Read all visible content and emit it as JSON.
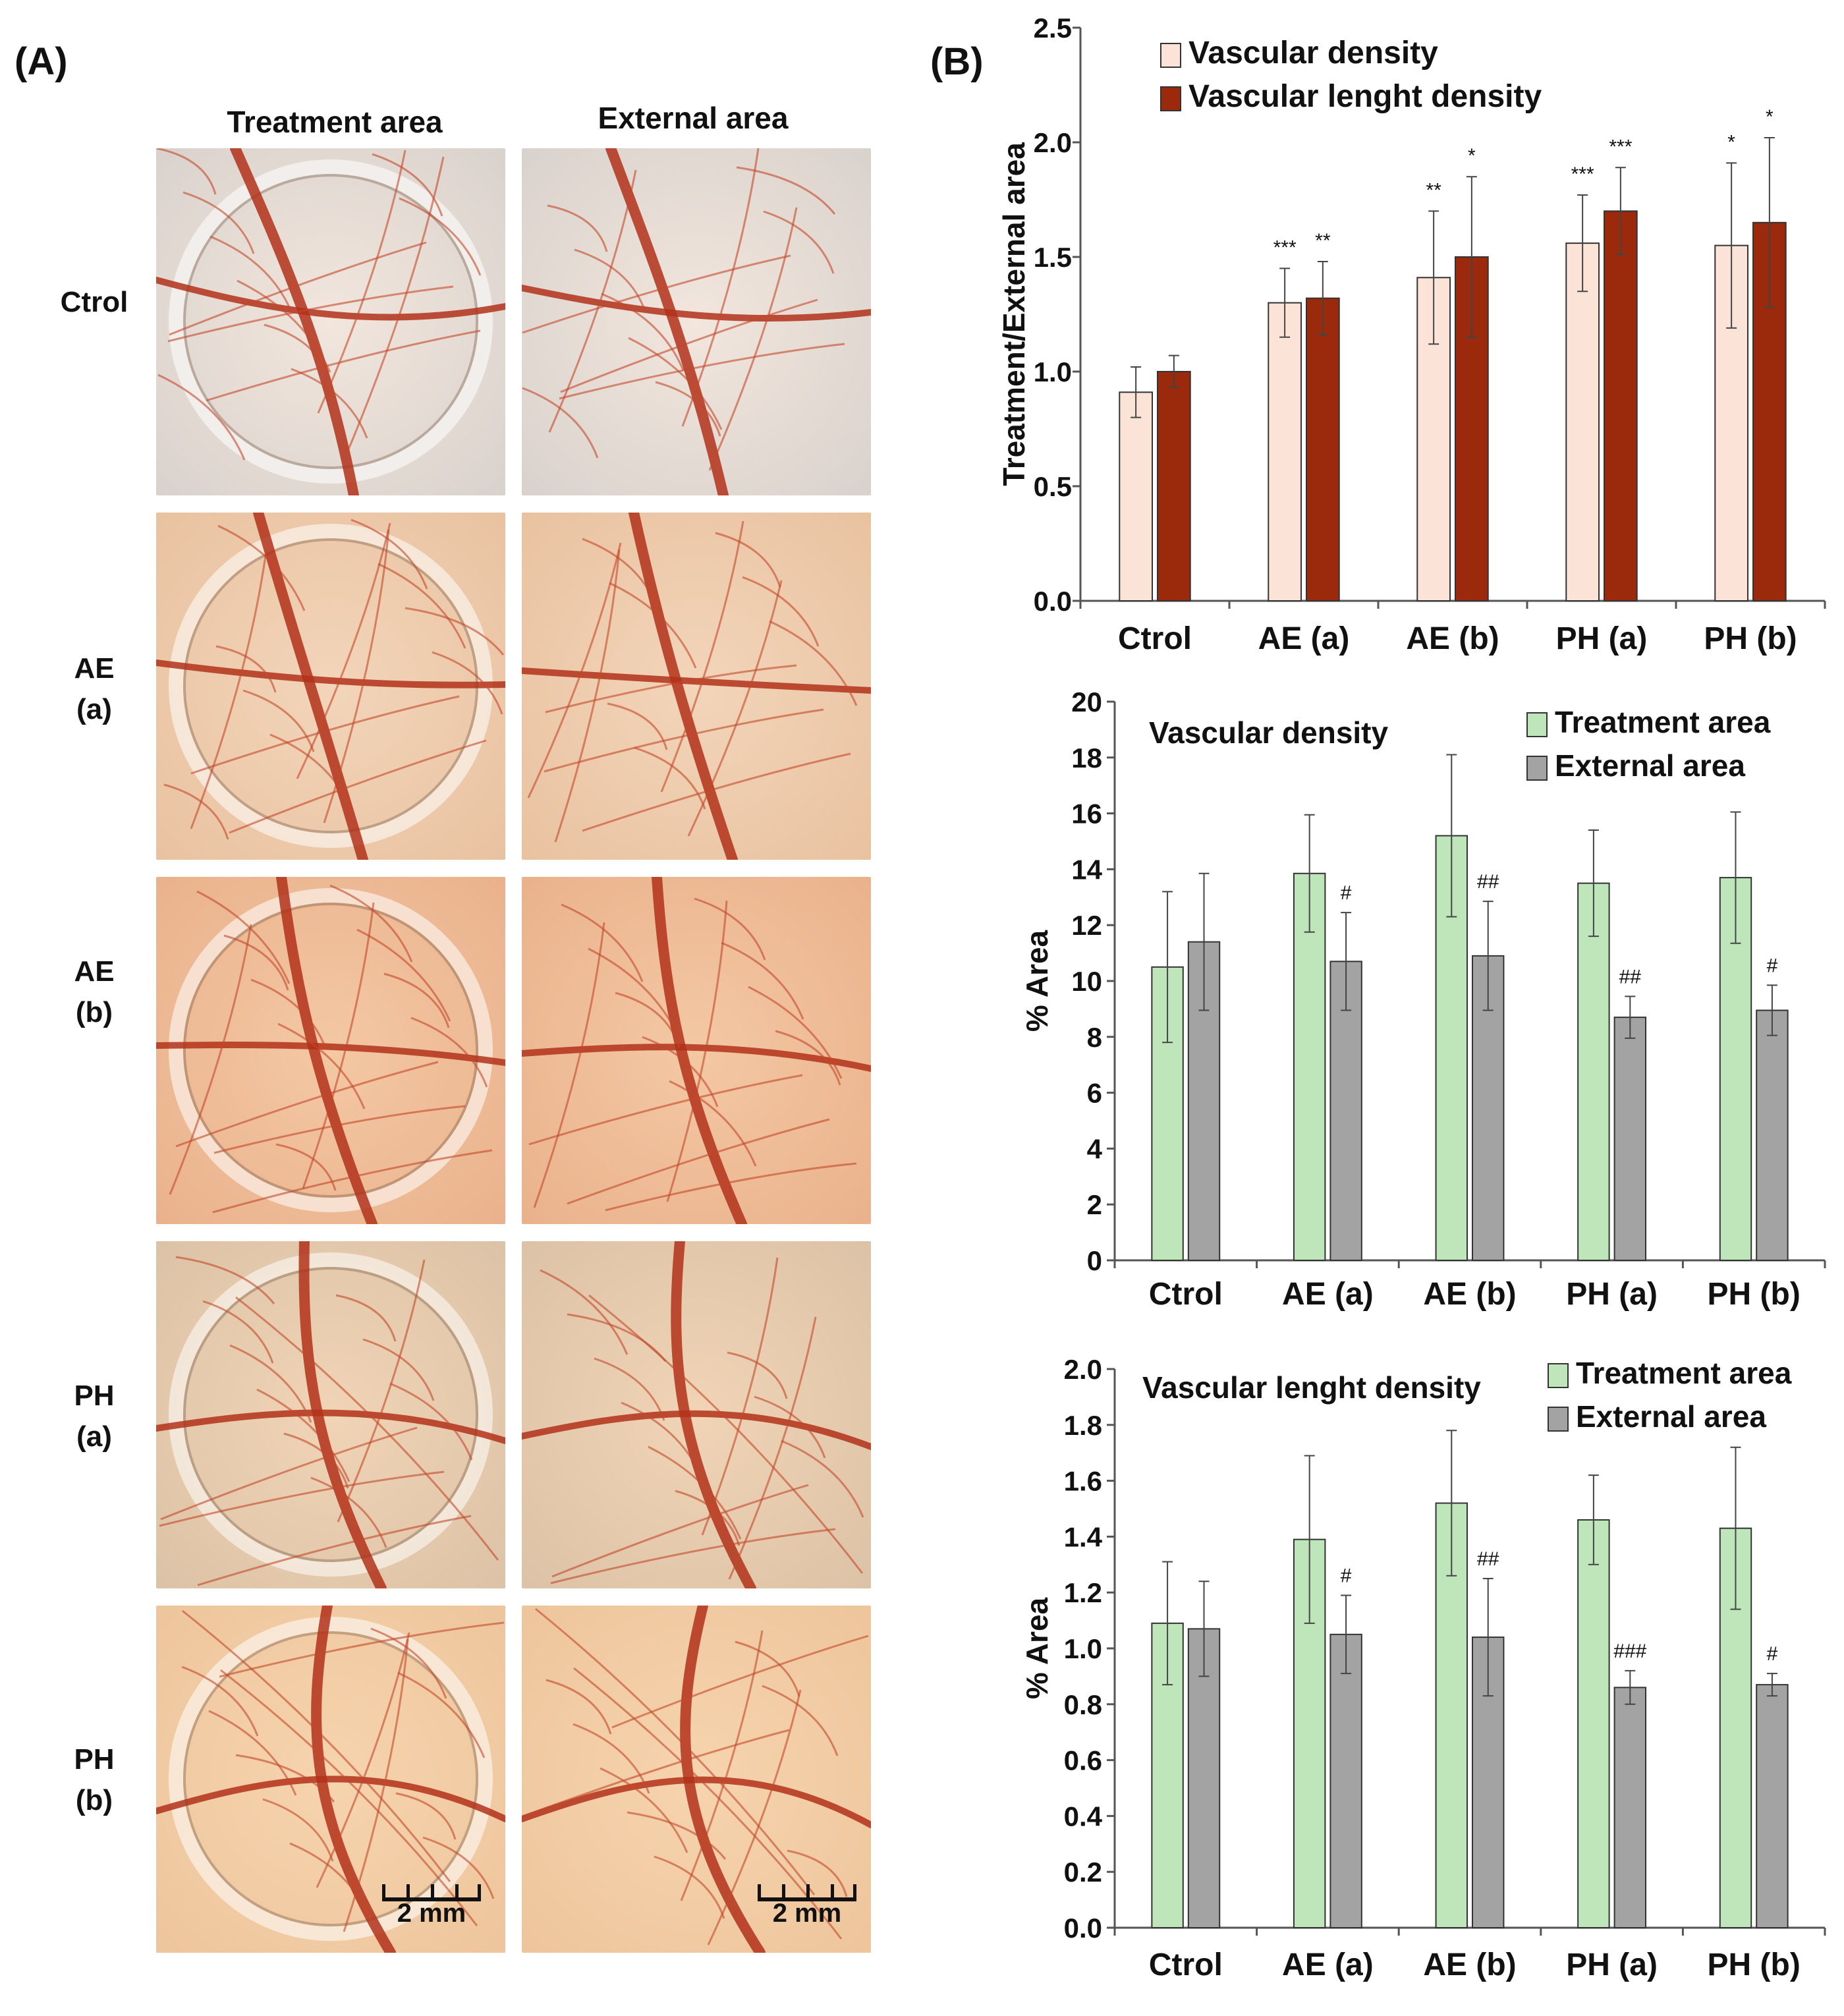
{
  "panel_a": {
    "label": "(A)",
    "col_headers": [
      "Treatment area",
      "External area"
    ],
    "rows": [
      {
        "line1": "Ctrol",
        "line2": ""
      },
      {
        "line1": "AE",
        "line2": "(a)"
      },
      {
        "line1": "AE",
        "line2": "(b)"
      },
      {
        "line1": "PH",
        "line2": "(a)"
      },
      {
        "line1": "PH",
        "line2": "(b)"
      }
    ],
    "scale_bar": "2 mm"
  },
  "panel_b": {
    "label": "(B)"
  },
  "colors": {
    "vascular_density": "#fbe3d8",
    "vascular_length_density": "#9b2a0c",
    "treatment_area": "#bfe6bb",
    "external_area": "#a3a3a3"
  },
  "chart_data": [
    {
      "type": "bar",
      "title": "",
      "ylabel": "Treatment/External area",
      "categories": [
        "Ctrol",
        "AE (a)",
        "AE (b)",
        "PH (a)",
        "PH (b)"
      ],
      "ylim": [
        0,
        2.5
      ],
      "yticks": [
        "0.0",
        "0.5",
        "1.0",
        "1.5",
        "2.0",
        "2.5"
      ],
      "legend_position": "top-left",
      "series": [
        {
          "name": "Vascular density",
          "values": [
            0.91,
            1.3,
            1.41,
            1.56,
            1.55
          ],
          "errors": [
            0.11,
            0.15,
            0.29,
            0.21,
            0.36
          ],
          "annotations": [
            "",
            "***",
            "**",
            "***",
            "*"
          ]
        },
        {
          "name": "Vascular lenght density",
          "values": [
            1.0,
            1.32,
            1.5,
            1.7,
            1.65
          ],
          "errors": [
            0.07,
            0.16,
            0.35,
            0.19,
            0.37
          ],
          "annotations": [
            "",
            "**",
            "*",
            "***",
            "*"
          ]
        }
      ]
    },
    {
      "type": "bar",
      "title": "Vascular density",
      "ylabel": "% Area",
      "categories": [
        "Ctrol",
        "AE (a)",
        "AE (b)",
        "PH (a)",
        "PH (b)"
      ],
      "ylim": [
        0,
        20
      ],
      "yticks": [
        "0",
        "2",
        "4",
        "6",
        "8",
        "10",
        "12",
        "14",
        "16",
        "18",
        "20"
      ],
      "legend_position": "top-right",
      "series": [
        {
          "name": "Treatment area",
          "values": [
            10.5,
            13.85,
            15.2,
            13.5,
            13.7
          ],
          "errors": [
            2.7,
            2.1,
            2.9,
            1.9,
            2.35
          ],
          "annotations": [
            "",
            "",
            "",
            "",
            ""
          ]
        },
        {
          "name": "External area",
          "values": [
            11.4,
            10.7,
            10.9,
            8.7,
            8.95
          ],
          "errors": [
            2.45,
            1.75,
            1.95,
            0.75,
            0.9
          ],
          "annotations": [
            "",
            "#",
            "##",
            "##",
            "#"
          ]
        }
      ]
    },
    {
      "type": "bar",
      "title": "Vascular lenght density",
      "ylabel": "% Area",
      "categories": [
        "Ctrol",
        "AE (a)",
        "AE (b)",
        "PH (a)",
        "PH (b)"
      ],
      "ylim": [
        0,
        2.0
      ],
      "yticks": [
        "0.0",
        "0.2",
        "0.4",
        "0.6",
        "0.8",
        "1.0",
        "1.2",
        "1.4",
        "1.6",
        "1.8",
        "2.0"
      ],
      "legend_position": "top-right",
      "series": [
        {
          "name": "Treatment area",
          "values": [
            1.09,
            1.39,
            1.52,
            1.46,
            1.43
          ],
          "errors": [
            0.22,
            0.3,
            0.26,
            0.16,
            0.29
          ],
          "annotations": [
            "",
            "",
            "",
            "",
            ""
          ]
        },
        {
          "name": "External area",
          "values": [
            1.07,
            1.05,
            1.04,
            0.86,
            0.87
          ],
          "errors": [
            0.17,
            0.14,
            0.21,
            0.06,
            0.04
          ],
          "annotations": [
            "",
            "#",
            "##",
            "###",
            "#"
          ]
        }
      ]
    }
  ]
}
